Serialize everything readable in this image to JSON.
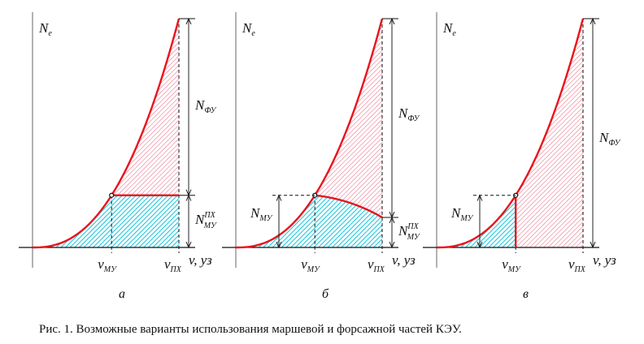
{
  "colors": {
    "curve": "#e8141c",
    "hatch_blue": "#20c8e0",
    "hatch_pink": "#e87890",
    "axis": "#999999"
  },
  "panels": [
    {
      "id": "a",
      "label": "а",
      "mode": "constant",
      "y_axis": "N",
      "y_axis_sub": "e",
      "x_axis": "v, уз",
      "v_mu": "v",
      "v_mu_sub": "МУ",
      "v_px": "v",
      "v_px_sub": "ПХ",
      "n_fu": "N",
      "n_fu_sub": "ФУ",
      "n_mu_px": "N",
      "n_mu_px_sup": "ПХ",
      "n_mu_px_sub": "МУ"
    },
    {
      "id": "b",
      "label": "б",
      "mode": "decreasing",
      "y_axis": "N",
      "y_axis_sub": "e",
      "x_axis": "v, уз",
      "v_mu": "v",
      "v_mu_sub": "МУ",
      "v_px": "v",
      "v_px_sub": "ПХ",
      "n_fu": "N",
      "n_fu_sub": "ФУ",
      "n_mu_px": "N",
      "n_mu_px_sup": "ПХ",
      "n_mu_px_sub": "МУ",
      "n_mu": "N",
      "n_mu_sub": "МУ"
    },
    {
      "id": "c",
      "label": "в",
      "mode": "cutoff",
      "y_axis": "N",
      "y_axis_sub": "e",
      "x_axis": "v, уз",
      "v_mu": "v",
      "v_mu_sub": "МУ",
      "v_px": "v",
      "v_px_sub": "ПХ",
      "n_fu": "N",
      "n_fu_sub": "ФУ",
      "n_mu": "N",
      "n_mu_sub": "МУ"
    }
  ],
  "caption": "Рис. 1.   Возможные варианты использования маршевой и форсажной частей КЭУ."
}
